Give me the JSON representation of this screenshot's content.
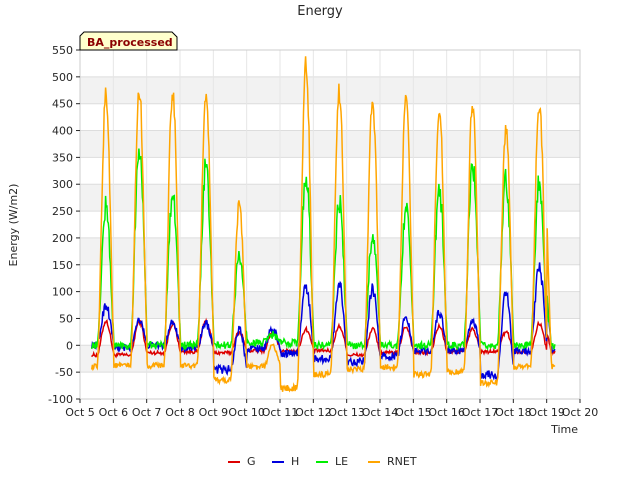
{
  "chart_data": {
    "type": "line",
    "title": "Energy",
    "xlabel": "Time",
    "ylabel": "Energy (W/m2)",
    "annotation": "BA_processed",
    "xlim": [
      5,
      20
    ],
    "ylim": [
      -100,
      550
    ],
    "x_ticks": [
      {
        "value": 5,
        "label": "Oct 5"
      },
      {
        "value": 6,
        "label": "Oct 6"
      },
      {
        "value": 7,
        "label": "Oct 7"
      },
      {
        "value": 8,
        "label": "Oct 8"
      },
      {
        "value": 9,
        "label": "Oct 9"
      },
      {
        "value": 10,
        "label": "Oct 10"
      },
      {
        "value": 11,
        "label": "Oct 11"
      },
      {
        "value": 12,
        "label": "Oct 12"
      },
      {
        "value": 13,
        "label": "Oct 13"
      },
      {
        "value": 14,
        "label": "Oct 14"
      },
      {
        "value": 15,
        "label": "Oct 15"
      },
      {
        "value": 16,
        "label": "Oct 16"
      },
      {
        "value": 17,
        "label": "Oct 17"
      },
      {
        "value": 18,
        "label": "Oct 18"
      },
      {
        "value": 19,
        "label": "Oct 19"
      },
      {
        "value": 20,
        "label": "Oct 20"
      }
    ],
    "y_ticks": [
      -100,
      -50,
      0,
      50,
      100,
      150,
      200,
      250,
      300,
      350,
      400,
      450,
      500,
      550
    ],
    "days": [
      5.3,
      6.3,
      7.3,
      8.3,
      9.3,
      10.3,
      11.3,
      12.3,
      13.3,
      14.3,
      15.3,
      16.3,
      17.3,
      18.3
    ],
    "series": [
      {
        "name": "G",
        "color": "#dd0000",
        "night": [
          -18,
          -18,
          -14,
          -12,
          -14,
          -10,
          -10,
          -10,
          -18,
          -14,
          -14,
          -12,
          -12,
          -12
        ],
        "peak": [
          45,
          45,
          40,
          45,
          25,
          25,
          30,
          35,
          30,
          35,
          35,
          30,
          25,
          40
        ]
      },
      {
        "name": "H",
        "color": "#0000dd",
        "night": [
          0,
          -5,
          0,
          -5,
          -45,
          -5,
          -15,
          -25,
          -30,
          -20,
          -10,
          -10,
          -55,
          -10
        ],
        "peak": [
          75,
          50,
          45,
          40,
          30,
          30,
          110,
          115,
          105,
          55,
          60,
          45,
          100,
          145
        ]
      },
      {
        "name": "LE",
        "color": "#00ee00",
        "night": [
          0,
          0,
          0,
          0,
          0,
          5,
          5,
          0,
          0,
          0,
          0,
          0,
          0,
          0
        ],
        "peak": [
          260,
          370,
          285,
          335,
          165,
          20,
          320,
          265,
          205,
          255,
          290,
          335,
          310,
          305
        ]
      },
      {
        "name": "RNET",
        "color": "#ffa500",
        "night": [
          -40,
          -38,
          -38,
          -38,
          -65,
          -40,
          -80,
          -55,
          -45,
          -40,
          -55,
          -50,
          -70,
          -40
        ],
        "peak": [
          470,
          472,
          472,
          470,
          265,
          0,
          528,
          472,
          455,
          462,
          445,
          452,
          408,
          452
        ]
      }
    ],
    "last_day": {
      "x": 18.9,
      "G": 40,
      "H": 145,
      "LE": 130,
      "RNET": 352
    },
    "grid": true,
    "legend_position": "bottom"
  }
}
